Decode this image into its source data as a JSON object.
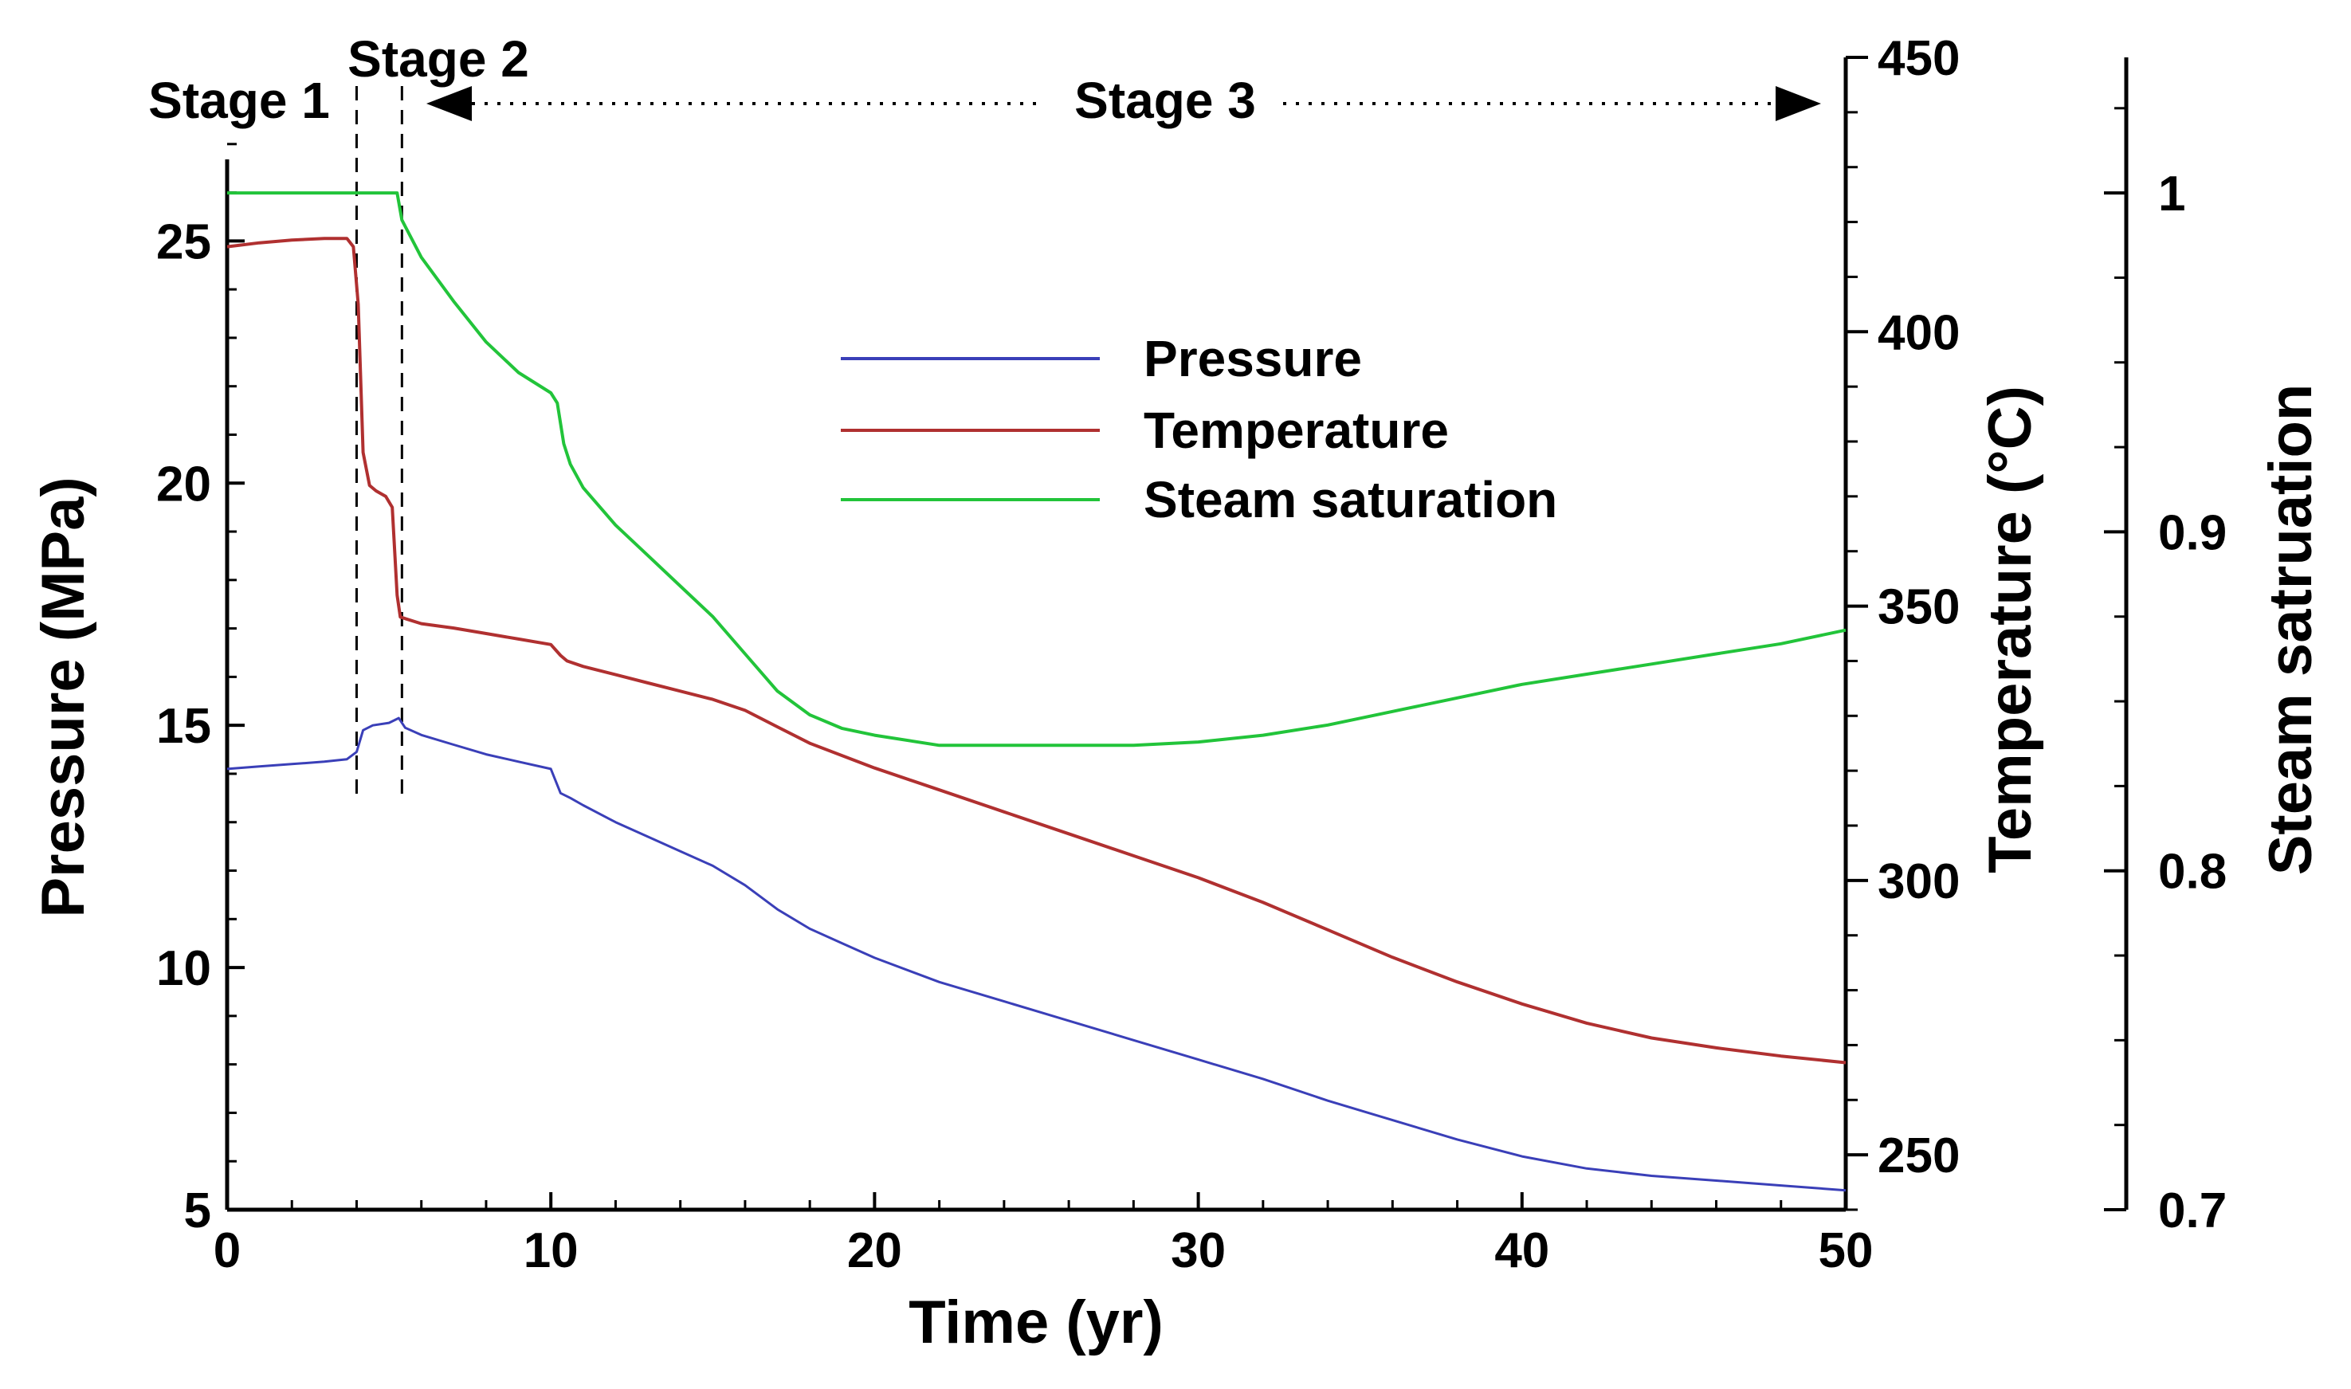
{
  "chart_data": {
    "type": "line",
    "title": "",
    "xlabel": "Time (yr)",
    "xlim": [
      0,
      50
    ],
    "xticks": [
      0,
      10,
      20,
      30,
      40,
      50
    ],
    "axes": {
      "left": {
        "label": "Pressure (MPa)",
        "lim": [
          5,
          28
        ],
        "ticks": [
          5,
          10,
          15,
          20,
          25
        ]
      },
      "right1": {
        "label": "Temperature (°C)",
        "lim": [
          240,
          450
        ],
        "ticks": [
          250,
          300,
          350,
          400,
          450
        ]
      },
      "right2": {
        "label": "Steam satruation",
        "lim": [
          0.7,
          1.04
        ],
        "ticks": [
          "0.7",
          "0.8",
          "0.9",
          "1"
        ]
      }
    },
    "series": [
      {
        "name": "Pressure",
        "axis": "left",
        "color": "#3a3fb8",
        "x": [
          0,
          1,
          2,
          3,
          3.7,
          4.0,
          4.2,
          4.5,
          5.0,
          5.3,
          5.5,
          6,
          7,
          8,
          9,
          10,
          10.3,
          10.6,
          11,
          12,
          13,
          14,
          15,
          16,
          17,
          18,
          19,
          20,
          22,
          24,
          26,
          28,
          30,
          32,
          34,
          36,
          38,
          40,
          42,
          44,
          46,
          48,
          50
        ],
        "values": [
          14.1,
          14.15,
          14.2,
          14.25,
          14.3,
          14.45,
          14.9,
          15.0,
          15.05,
          15.15,
          14.95,
          14.8,
          14.6,
          14.4,
          14.25,
          14.1,
          13.6,
          13.5,
          13.35,
          13.0,
          12.7,
          12.4,
          12.1,
          11.7,
          11.2,
          10.8,
          10.5,
          10.2,
          9.7,
          9.3,
          8.9,
          8.5,
          8.1,
          7.7,
          7.25,
          6.85,
          6.45,
          6.1,
          5.85,
          5.7,
          5.6,
          5.5,
          5.4
        ]
      },
      {
        "name": "Temperature",
        "axis": "right1",
        "color": "#b03030",
        "x": [
          0,
          1,
          2,
          3,
          3.7,
          3.9,
          4.05,
          4.2,
          4.4,
          4.6,
          4.9,
          5.1,
          5.25,
          5.35,
          6,
          7,
          8,
          9,
          10,
          10.3,
          10.5,
          11,
          12,
          13,
          14,
          15,
          16,
          17,
          18,
          20,
          22,
          24,
          26,
          28,
          30,
          32,
          34,
          36,
          38,
          40,
          42,
          44,
          46,
          48,
          50
        ],
        "values": [
          415.5,
          416.2,
          416.7,
          417,
          417,
          415.5,
          405,
          378,
          372,
          371,
          370,
          368,
          352,
          348,
          346.8,
          346,
          345,
          344,
          343,
          341,
          340,
          339,
          337.5,
          336,
          334.5,
          333,
          331,
          328,
          325,
          320.5,
          316.5,
          312.5,
          308.5,
          304.5,
          300.5,
          296,
          291,
          286,
          281.5,
          277.5,
          274,
          271.3,
          269.5,
          268,
          266.8
        ]
      },
      {
        "name": "Steam saturation",
        "axis": "right2",
        "color": "#22c43a",
        "x": [
          0,
          1,
          2,
          3,
          4,
          5,
          5.25,
          5.4,
          6,
          7,
          8,
          9,
          10,
          10.2,
          10.4,
          10.6,
          11,
          12,
          13,
          14,
          15,
          16,
          17,
          18,
          19,
          20,
          22,
          24,
          26,
          28,
          30,
          32,
          34,
          36,
          38,
          40,
          42,
          44,
          46,
          48,
          50
        ],
        "values": [
          1.0,
          1.0,
          1.0,
          1.0,
          1.0,
          1.0,
          1.0,
          0.992,
          0.981,
          0.968,
          0.956,
          0.947,
          0.941,
          0.938,
          0.926,
          0.92,
          0.913,
          0.902,
          0.893,
          0.884,
          0.875,
          0.864,
          0.853,
          0.846,
          0.842,
          0.84,
          0.837,
          0.837,
          0.837,
          0.837,
          0.838,
          0.84,
          0.843,
          0.847,
          0.851,
          0.855,
          0.858,
          0.861,
          0.864,
          0.867,
          0.871
        ]
      }
    ],
    "stage_lines_x": [
      4.0,
      5.4
    ],
    "annotations": {
      "stage1": "Stage 1",
      "stage2": "Stage 2",
      "stage3": "Stage 3"
    },
    "legend": {
      "position": "center",
      "entries": [
        "Pressure",
        "Temperature",
        "Steam saturation"
      ]
    },
    "grid": false
  }
}
